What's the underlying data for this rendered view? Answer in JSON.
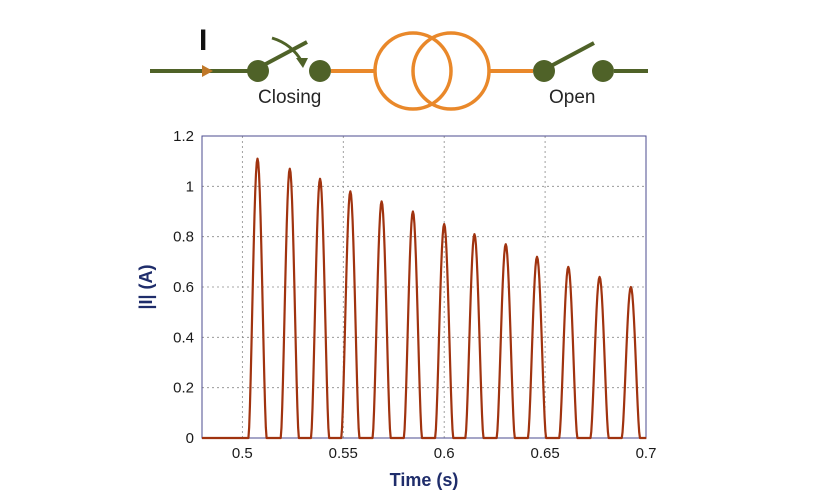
{
  "schematic": {
    "closing_label": "Closing",
    "open_label": "Open",
    "current_marker": "I",
    "colors": {
      "line": "#4f6228",
      "node": "#4f6228",
      "transformer": "#e9882a",
      "arrow": "#c07828"
    }
  },
  "chart_data": {
    "type": "line",
    "title": "",
    "xlabel": "Time (s)",
    "ylabel": "|I| (A)",
    "xlim": [
      0.48,
      0.7
    ],
    "ylim": [
      0,
      1.2
    ],
    "xticks": [
      0.5,
      0.55,
      0.6,
      0.65,
      0.7
    ],
    "yticks": [
      0,
      0.2,
      0.4,
      0.6,
      0.8,
      1,
      1.2
    ],
    "grid": true,
    "line_color": "#a0330f",
    "series": [
      {
        "name": "",
        "peaks": [
          {
            "t": 0.5075,
            "i": 1.11
          },
          {
            "t": 0.5235,
            "i": 1.07
          },
          {
            "t": 0.5385,
            "i": 1.03
          },
          {
            "t": 0.5535,
            "i": 0.98
          },
          {
            "t": 0.569,
            "i": 0.94
          },
          {
            "t": 0.5845,
            "i": 0.9
          },
          {
            "t": 0.6,
            "i": 0.85
          },
          {
            "t": 0.615,
            "i": 0.81
          },
          {
            "t": 0.6305,
            "i": 0.77
          },
          {
            "t": 0.646,
            "i": 0.72
          },
          {
            "t": 0.6615,
            "i": 0.68
          },
          {
            "t": 0.677,
            "i": 0.64
          },
          {
            "t": 0.6925,
            "i": 0.6
          }
        ],
        "pulse_half_width": 0.0045,
        "baseline_until": 0.5,
        "baseline_value": 0.0
      }
    ]
  }
}
